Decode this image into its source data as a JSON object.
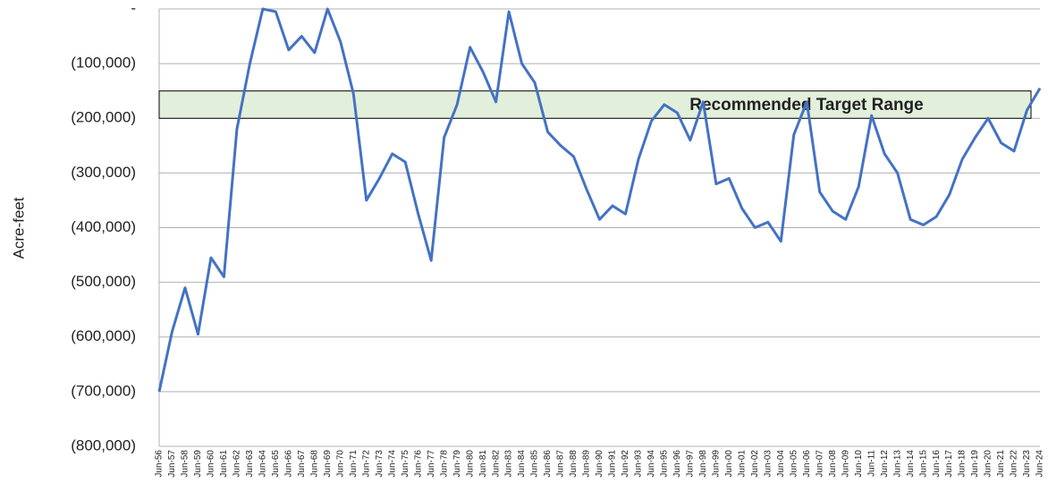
{
  "chart_data": {
    "type": "line",
    "y_label": "Acre-feet",
    "categories": [
      "Jun-56",
      "Jun-57",
      "Jun-58",
      "Jun-59",
      "Jun-60",
      "Jun-61",
      "Jun-62",
      "Jun-63",
      "Jun-64",
      "Jun-65",
      "Jun-66",
      "Jun-67",
      "Jun-68",
      "Jun-69",
      "Jun-70",
      "Jun-71",
      "Jun-72",
      "Jun-73",
      "Jun-74",
      "Jun-75",
      "Jun-76",
      "Jun-77",
      "Jun-78",
      "Jun-79",
      "Jun-80",
      "Jun-81",
      "Jun-82",
      "Jun-83",
      "Jun-84",
      "Jun-85",
      "Jun-86",
      "Jun-87",
      "Jun-88",
      "Jun-89",
      "Jun-90",
      "Jun-91",
      "Jun-92",
      "Jun-93",
      "Jun-94",
      "Jun-95",
      "Jun-96",
      "Jun-97",
      "Jun-98",
      "Jun-99",
      "Jun-00",
      "Jun-01",
      "Jun-02",
      "Jun-03",
      "Jun-04",
      "Jun-05",
      "Jun-06",
      "Jun-07",
      "Jun-08",
      "Jun-09",
      "Jun-10",
      "Jun-11",
      "Jun-12",
      "Jun-13",
      "Jun-14",
      "Jun-15",
      "Jun-16",
      "Jun-17",
      "Jun-18",
      "Jun-19",
      "Jun-20",
      "Jun-21",
      "Jun-22",
      "Jun-23",
      "Jun-24"
    ],
    "series": [
      {
        "name": "Acre-feet",
        "color": "#4472c4",
        "values": [
          -700000,
          -590000,
          -510000,
          -595000,
          -455000,
          -490000,
          -220000,
          -100000,
          0,
          -5000,
          -75000,
          -50000,
          -80000,
          0,
          -60000,
          -155000,
          -350000,
          -310000,
          -265000,
          -280000,
          -375000,
          -460000,
          -235000,
          -175000,
          -70000,
          -115000,
          -170000,
          -5000,
          -100000,
          -135000,
          -225000,
          -250000,
          -270000,
          -330000,
          -385000,
          -360000,
          -375000,
          -275000,
          -205000,
          -175000,
          -190000,
          -240000,
          -170000,
          -320000,
          -310000,
          -365000,
          -400000,
          -390000,
          -425000,
          -230000,
          -170000,
          -335000,
          -370000,
          -385000,
          -325000,
          -195000,
          -265000,
          -300000,
          -385000,
          -395000,
          -380000,
          -340000,
          -275000,
          -235000,
          -200000,
          -245000,
          -260000,
          -185000,
          -145000
        ]
      }
    ],
    "target_range": {
      "label": "Recommended Target Range",
      "range": [
        -200000,
        -150000
      ],
      "color": "#e2efda"
    },
    "ylim": [
      -800000,
      0
    ],
    "yticks": [
      {
        "value": 0,
        "label": "-"
      },
      {
        "value": -100000,
        "label": "(100,000)"
      },
      {
        "value": -200000,
        "label": "(200,000)"
      },
      {
        "value": -300000,
        "label": "(300,000)"
      },
      {
        "value": -400000,
        "label": "(400,000)"
      },
      {
        "value": -500000,
        "label": "(500,000)"
      },
      {
        "value": -600000,
        "label": "(600,000)"
      },
      {
        "value": -700000,
        "label": "(700,000)"
      },
      {
        "value": -800000,
        "label": "(800,000)"
      }
    ],
    "grid": true
  }
}
